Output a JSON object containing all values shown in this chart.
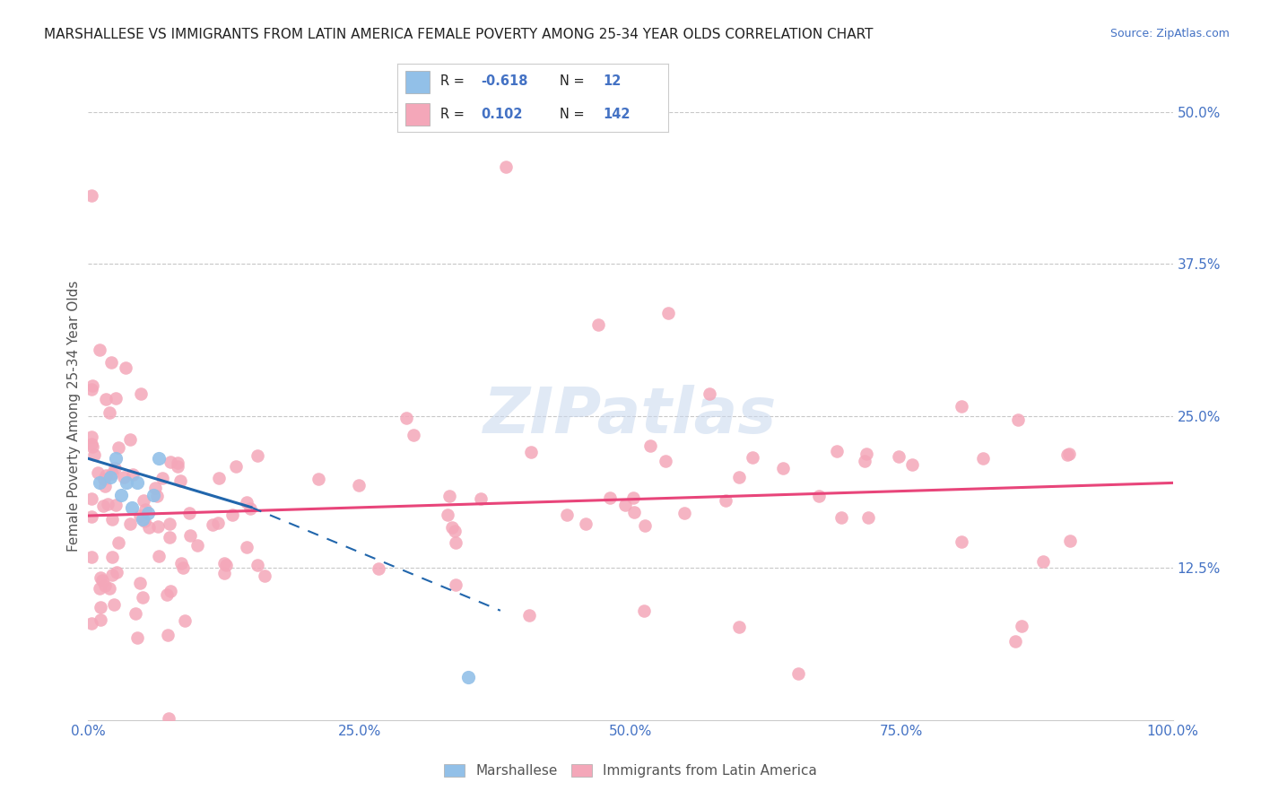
{
  "title": "MARSHALLESE VS IMMIGRANTS FROM LATIN AMERICA FEMALE POVERTY AMONG 25-34 YEAR OLDS CORRELATION CHART",
  "source": "Source: ZipAtlas.com",
  "ylabel": "Female Poverty Among 25-34 Year Olds",
  "xlim": [
    0,
    1.0
  ],
  "ylim": [
    0,
    0.5
  ],
  "xtick_vals": [
    0.0,
    0.25,
    0.5,
    0.75,
    1.0
  ],
  "xtick_labels": [
    "0.0%",
    "25.0%",
    "50.0%",
    "75.0%",
    "100.0%"
  ],
  "ytick_vals": [
    0.0,
    0.125,
    0.25,
    0.375,
    0.5
  ],
  "right_ytick_labels": [
    "",
    "12.5%",
    "25.0%",
    "37.5%",
    "50.0%"
  ],
  "marshallese_color": "#92C0E8",
  "latin_color": "#F4A7B9",
  "marshallese_line_color": "#2166AC",
  "latin_line_color": "#E8457A",
  "R_marshallese": -0.618,
  "N_marshallese": 12,
  "R_latin": 0.102,
  "N_latin": 142,
  "watermark": "ZIPatlas",
  "background_color": "#FFFFFF",
  "marsh_x": [
    0.01,
    0.02,
    0.025,
    0.03,
    0.035,
    0.04,
    0.045,
    0.05,
    0.055,
    0.06,
    0.065,
    0.35
  ],
  "marsh_y": [
    0.195,
    0.2,
    0.215,
    0.185,
    0.195,
    0.175,
    0.195,
    0.165,
    0.17,
    0.185,
    0.215,
    0.035
  ],
  "latin_line_x0": 0.0,
  "latin_line_y0": 0.168,
  "latin_line_x1": 1.0,
  "latin_line_y1": 0.195,
  "marsh_line_solid_x0": 0.0,
  "marsh_line_solid_y0": 0.215,
  "marsh_line_solid_x1": 0.15,
  "marsh_line_solid_y1": 0.175,
  "marsh_line_dash_x1": 0.38,
  "marsh_line_dash_y1": 0.09
}
